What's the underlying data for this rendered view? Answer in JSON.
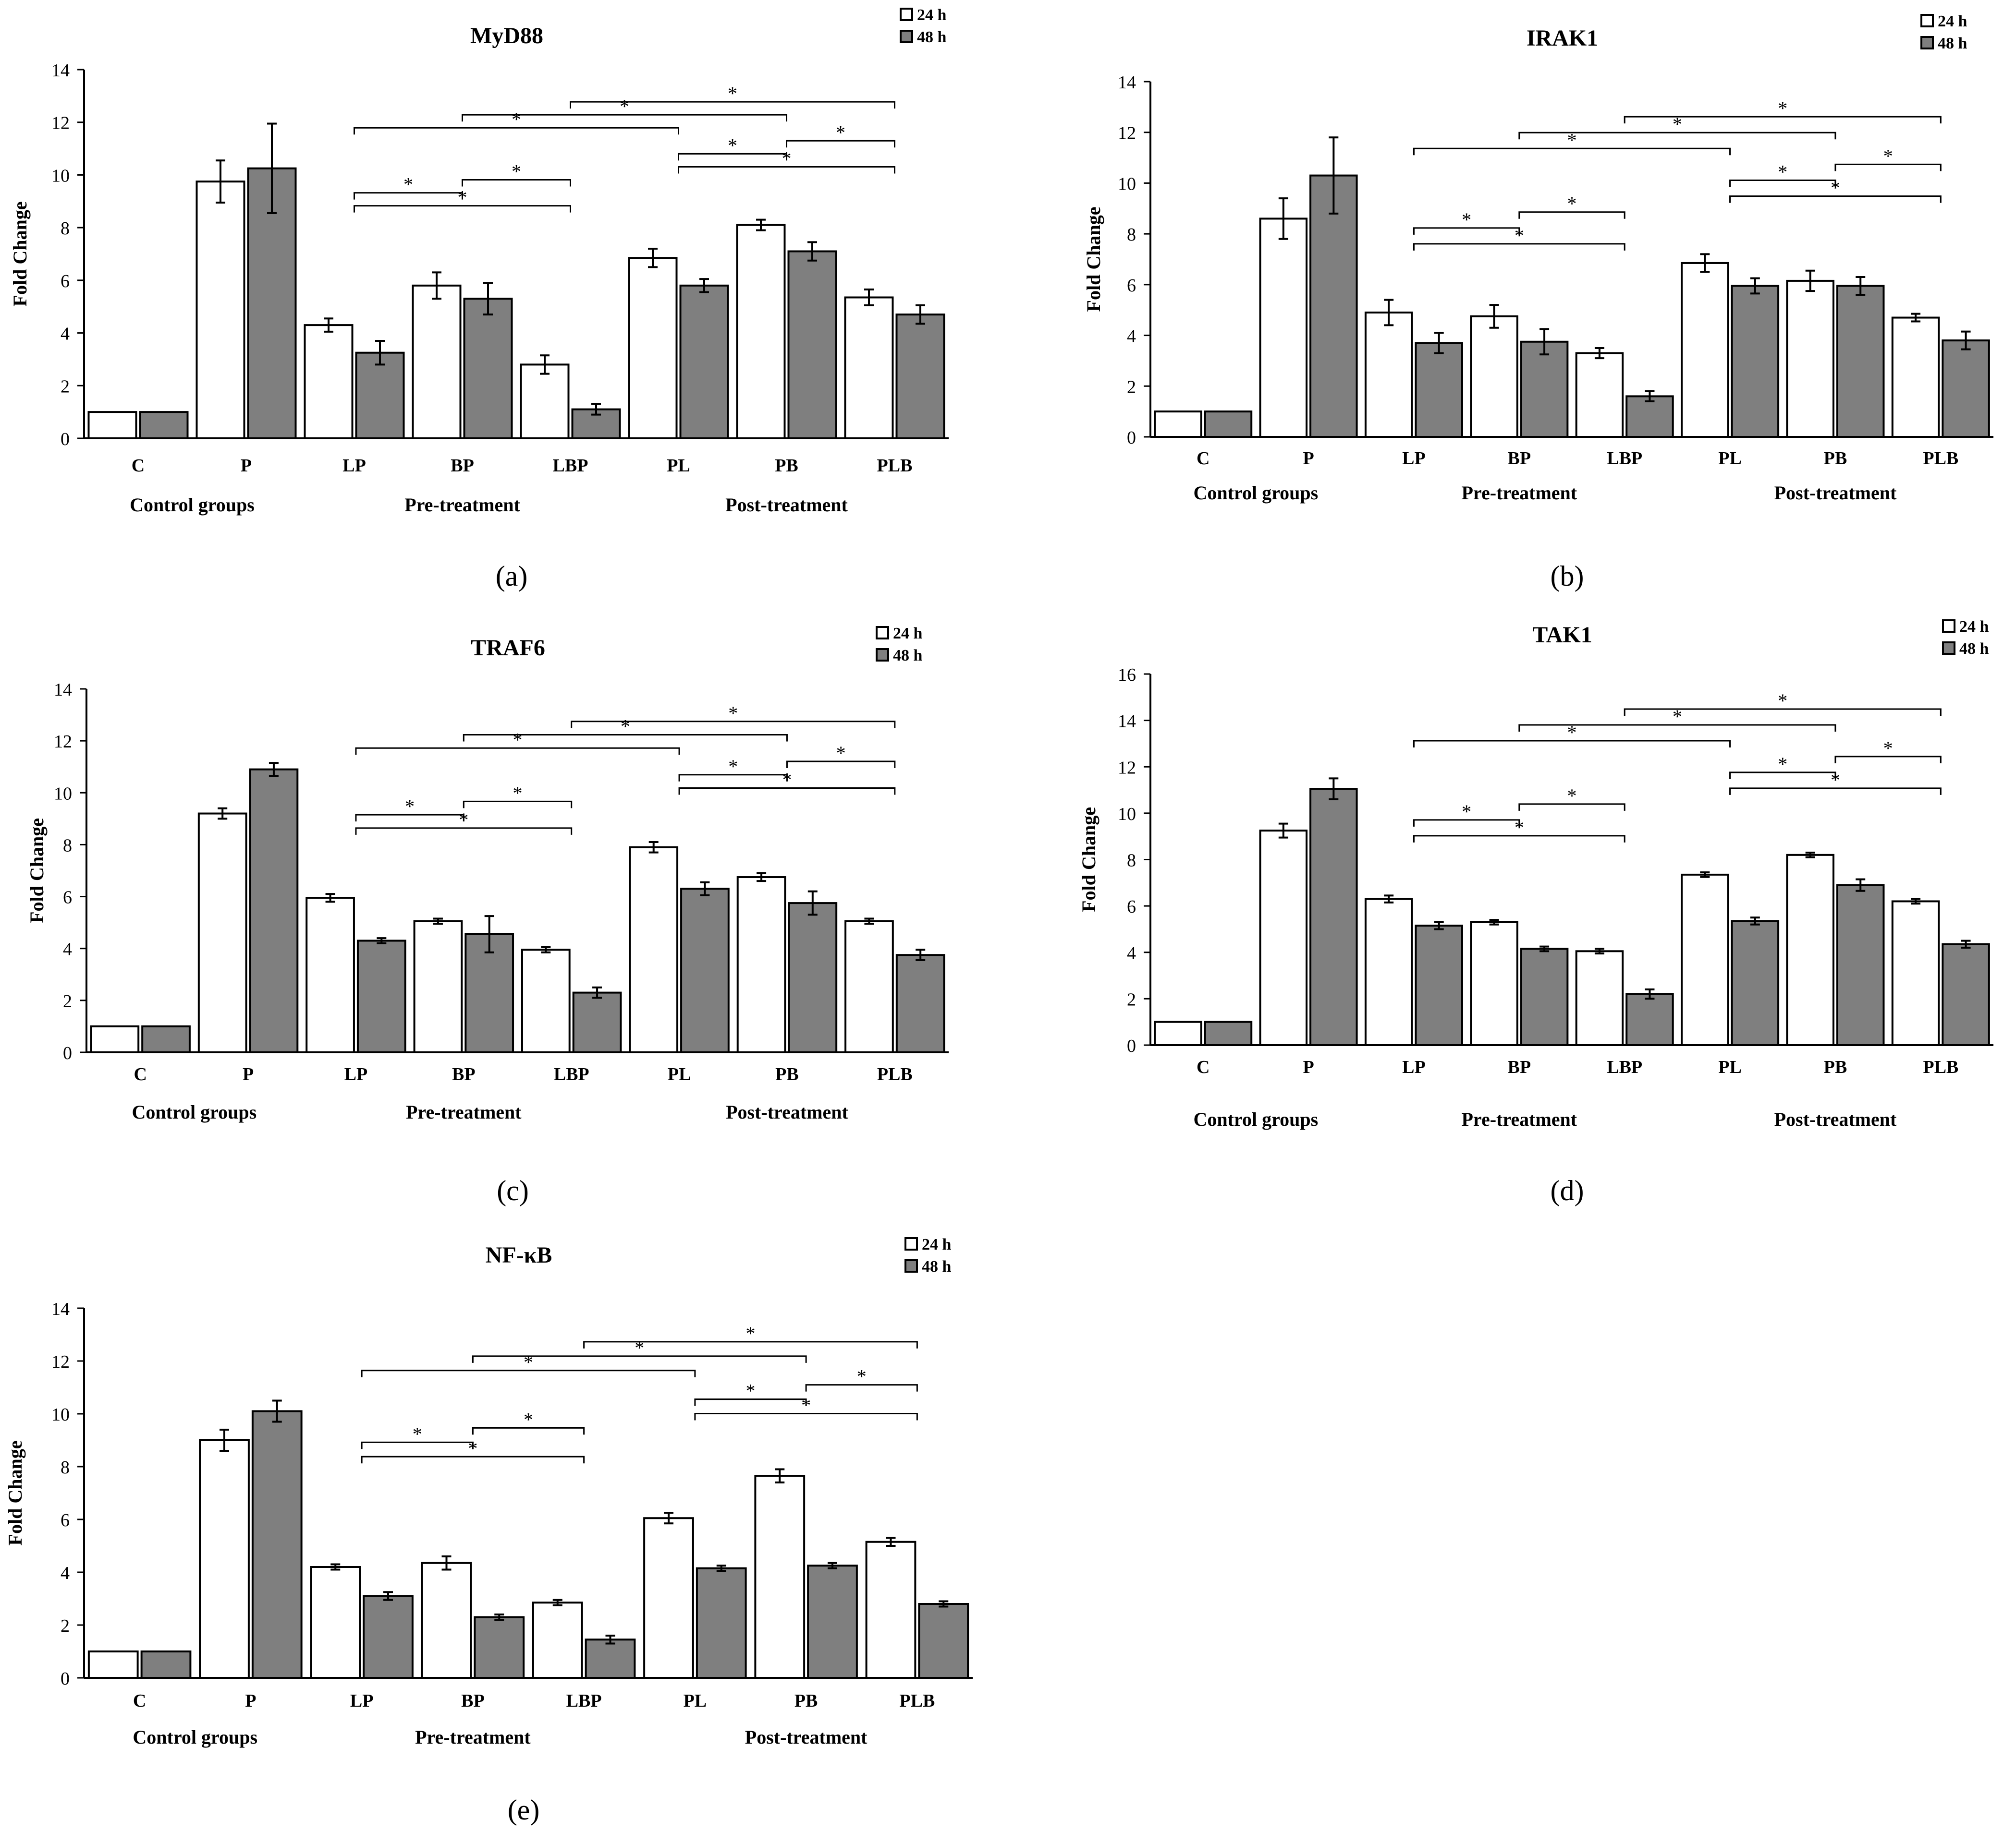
{
  "figure": {
    "legend": {
      "series1": "24 h",
      "series2": "48 h"
    },
    "groups": [
      "Control groups",
      "Pre-treatment",
      "Post-treatment"
    ],
    "ylabel": "Fold Change",
    "colors": {
      "series1": "#ffffff",
      "series2": "#7f7f7f",
      "axis": "#000000"
    }
  },
  "chart_data": [
    {
      "panel": "(a)",
      "title": "MyD88",
      "type": "bar",
      "categories": [
        "C",
        "P",
        "LP",
        "BP",
        "LBP",
        "PL",
        "PB",
        "PLB"
      ],
      "ylim": [
        0,
        14
      ],
      "yticks": [
        0,
        2,
        4,
        6,
        8,
        10,
        12,
        14
      ],
      "series": [
        {
          "name": "24 h",
          "values": [
            1,
            9.75,
            4.3,
            5.8,
            2.8,
            6.85,
            8.1,
            5.35
          ],
          "errors": [
            0,
            0.8,
            0.25,
            0.5,
            0.35,
            0.35,
            0.2,
            0.3
          ]
        },
        {
          "name": "48 h",
          "values": [
            1,
            10.25,
            3.25,
            5.3,
            1.1,
            5.8,
            7.1,
            4.7
          ],
          "errors": [
            0,
            1.7,
            0.45,
            0.6,
            0.2,
            0.25,
            0.35,
            0.35
          ]
        }
      ],
      "significance": "*"
    },
    {
      "panel": "(b)",
      "title": "IRAK1",
      "type": "bar",
      "categories": [
        "C",
        "P",
        "LP",
        "BP",
        "LBP",
        "PL",
        "PB",
        "PLB"
      ],
      "ylim": [
        0,
        14
      ],
      "yticks": [
        0,
        2,
        4,
        6,
        8,
        10,
        12,
        14
      ],
      "series": [
        {
          "name": "24 h",
          "values": [
            1,
            8.6,
            4.9,
            4.75,
            3.3,
            6.85,
            6.15,
            4.7
          ],
          "errors": [
            0,
            0.8,
            0.5,
            0.45,
            0.2,
            0.35,
            0.4,
            0.15
          ]
        },
        {
          "name": "48 h",
          "values": [
            1,
            10.3,
            3.7,
            3.75,
            1.6,
            5.95,
            5.95,
            3.8
          ],
          "errors": [
            0,
            1.5,
            0.4,
            0.5,
            0.2,
            0.3,
            0.35,
            0.35
          ]
        }
      ],
      "significance": "*"
    },
    {
      "panel": "(c)",
      "title": "TRAF6",
      "type": "bar",
      "categories": [
        "C",
        "P",
        "LP",
        "BP",
        "LBP",
        "PL",
        "PB",
        "PLB"
      ],
      "ylim": [
        0,
        14
      ],
      "yticks": [
        0,
        2,
        4,
        6,
        8,
        10,
        12,
        14
      ],
      "series": [
        {
          "name": "24 h",
          "values": [
            1,
            9.2,
            5.95,
            5.05,
            3.95,
            7.9,
            6.75,
            5.05
          ],
          "errors": [
            0,
            0.2,
            0.15,
            0.1,
            0.1,
            0.2,
            0.15,
            0.1
          ]
        },
        {
          "name": "48 h",
          "values": [
            1,
            10.9,
            4.3,
            4.55,
            2.3,
            6.3,
            5.75,
            3.75
          ],
          "errors": [
            0,
            0.25,
            0.1,
            0.7,
            0.2,
            0.25,
            0.45,
            0.2
          ]
        }
      ],
      "significance": "*"
    },
    {
      "panel": "(d)",
      "title": "TAK1",
      "type": "bar",
      "categories": [
        "C",
        "P",
        "LP",
        "BP",
        "LBP",
        "PL",
        "PB",
        "PLB"
      ],
      "ylim": [
        0,
        16
      ],
      "yticks": [
        0,
        2,
        4,
        6,
        8,
        10,
        12,
        14,
        16
      ],
      "series": [
        {
          "name": "24 h",
          "values": [
            1,
            9.25,
            6.3,
            5.3,
            4.05,
            7.35,
            8.2,
            6.2
          ],
          "errors": [
            0,
            0.3,
            0.15,
            0.1,
            0.1,
            0.1,
            0.1,
            0.1
          ]
        },
        {
          "name": "48 h",
          "values": [
            1,
            11.05,
            5.15,
            4.15,
            2.2,
            5.35,
            6.9,
            4.35
          ],
          "errors": [
            0,
            0.45,
            0.15,
            0.1,
            0.2,
            0.15,
            0.25,
            0.15
          ]
        }
      ],
      "significance": "*"
    },
    {
      "panel": "(e)",
      "title": "NF-κB",
      "type": "bar",
      "categories": [
        "C",
        "P",
        "LP",
        "BP",
        "LBP",
        "PL",
        "PB",
        "PLB"
      ],
      "ylim": [
        0,
        14
      ],
      "yticks": [
        0,
        2,
        4,
        6,
        8,
        10,
        12,
        14
      ],
      "series": [
        {
          "name": "24 h",
          "values": [
            1,
            9.0,
            4.2,
            4.35,
            2.85,
            6.05,
            7.65,
            5.15
          ],
          "errors": [
            0,
            0.4,
            0.1,
            0.25,
            0.1,
            0.2,
            0.25,
            0.15
          ]
        },
        {
          "name": "48 h",
          "values": [
            1,
            10.1,
            3.1,
            2.3,
            1.45,
            4.15,
            4.25,
            2.8
          ],
          "errors": [
            0,
            0.4,
            0.15,
            0.1,
            0.15,
            0.1,
            0.1,
            0.1
          ]
        }
      ],
      "significance": "*"
    }
  ]
}
